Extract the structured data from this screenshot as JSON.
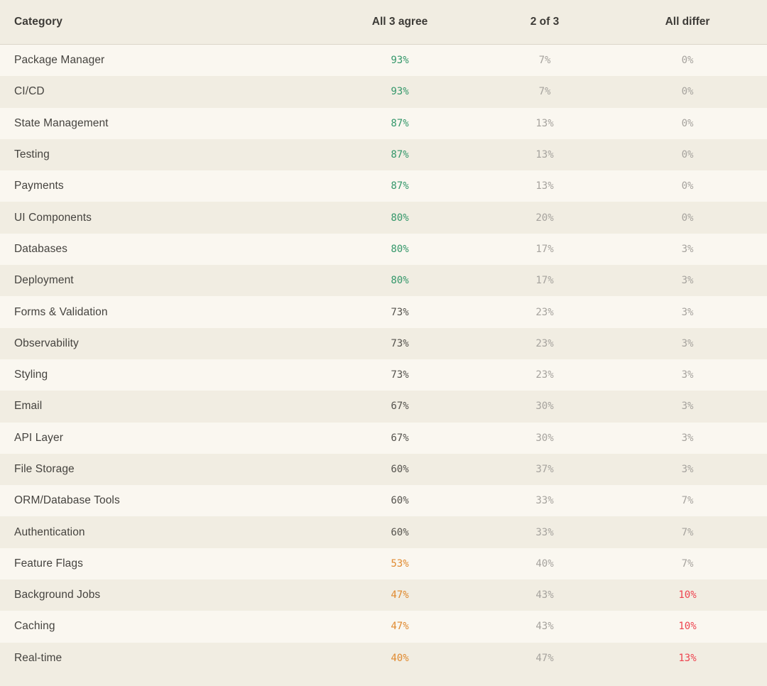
{
  "palette": {
    "page_bg": "#f1ede2",
    "row_alt_bg": "#faf7f0",
    "divider": "#dcd7ca",
    "header_text": "#3d3b37",
    "category_text": "#45433f",
    "green": "#34976a",
    "orange": "#e08a30",
    "red": "#ee4450",
    "gray": "#a6a39e",
    "dark": "#55534e"
  },
  "chart_data": {
    "type": "table",
    "columns": [
      "Category",
      "All 3 agree",
      "2 of 3",
      "All differ"
    ],
    "rows": [
      {
        "category": "Package Manager",
        "agree": "93%",
        "two_of_three": "7%",
        "all_differ": "0%",
        "agree_tone": "green",
        "differ_tone": "gray"
      },
      {
        "category": "CI/CD",
        "agree": "93%",
        "two_of_three": "7%",
        "all_differ": "0%",
        "agree_tone": "green",
        "differ_tone": "gray"
      },
      {
        "category": "State Management",
        "agree": "87%",
        "two_of_three": "13%",
        "all_differ": "0%",
        "agree_tone": "green",
        "differ_tone": "gray"
      },
      {
        "category": "Testing",
        "agree": "87%",
        "two_of_three": "13%",
        "all_differ": "0%",
        "agree_tone": "green",
        "differ_tone": "gray"
      },
      {
        "category": "Payments",
        "agree": "87%",
        "two_of_three": "13%",
        "all_differ": "0%",
        "agree_tone": "green",
        "differ_tone": "gray"
      },
      {
        "category": "UI Components",
        "agree": "80%",
        "two_of_three": "20%",
        "all_differ": "0%",
        "agree_tone": "green",
        "differ_tone": "gray"
      },
      {
        "category": "Databases",
        "agree": "80%",
        "two_of_three": "17%",
        "all_differ": "3%",
        "agree_tone": "green",
        "differ_tone": "gray"
      },
      {
        "category": "Deployment",
        "agree": "80%",
        "two_of_three": "17%",
        "all_differ": "3%",
        "agree_tone": "green",
        "differ_tone": "gray"
      },
      {
        "category": "Forms & Validation",
        "agree": "73%",
        "two_of_three": "23%",
        "all_differ": "3%",
        "agree_tone": "dark",
        "differ_tone": "gray"
      },
      {
        "category": "Observability",
        "agree": "73%",
        "two_of_three": "23%",
        "all_differ": "3%",
        "agree_tone": "dark",
        "differ_tone": "gray"
      },
      {
        "category": "Styling",
        "agree": "73%",
        "two_of_three": "23%",
        "all_differ": "3%",
        "agree_tone": "dark",
        "differ_tone": "gray"
      },
      {
        "category": "Email",
        "agree": "67%",
        "two_of_three": "30%",
        "all_differ": "3%",
        "agree_tone": "dark",
        "differ_tone": "gray"
      },
      {
        "category": "API Layer",
        "agree": "67%",
        "two_of_three": "30%",
        "all_differ": "3%",
        "agree_tone": "dark",
        "differ_tone": "gray"
      },
      {
        "category": "File Storage",
        "agree": "60%",
        "two_of_three": "37%",
        "all_differ": "3%",
        "agree_tone": "dark",
        "differ_tone": "gray"
      },
      {
        "category": "ORM/Database Tools",
        "agree": "60%",
        "two_of_three": "33%",
        "all_differ": "7%",
        "agree_tone": "dark",
        "differ_tone": "gray"
      },
      {
        "category": "Authentication",
        "agree": "60%",
        "two_of_three": "33%",
        "all_differ": "7%",
        "agree_tone": "dark",
        "differ_tone": "gray"
      },
      {
        "category": "Feature Flags",
        "agree": "53%",
        "two_of_three": "40%",
        "all_differ": "7%",
        "agree_tone": "orange",
        "differ_tone": "gray"
      },
      {
        "category": "Background Jobs",
        "agree": "47%",
        "two_of_three": "43%",
        "all_differ": "10%",
        "agree_tone": "orange",
        "differ_tone": "red"
      },
      {
        "category": "Caching",
        "agree": "47%",
        "two_of_three": "43%",
        "all_differ": "10%",
        "agree_tone": "orange",
        "differ_tone": "red"
      },
      {
        "category": "Real-time",
        "agree": "40%",
        "two_of_three": "47%",
        "all_differ": "13%",
        "agree_tone": "orange",
        "differ_tone": "red"
      }
    ]
  }
}
